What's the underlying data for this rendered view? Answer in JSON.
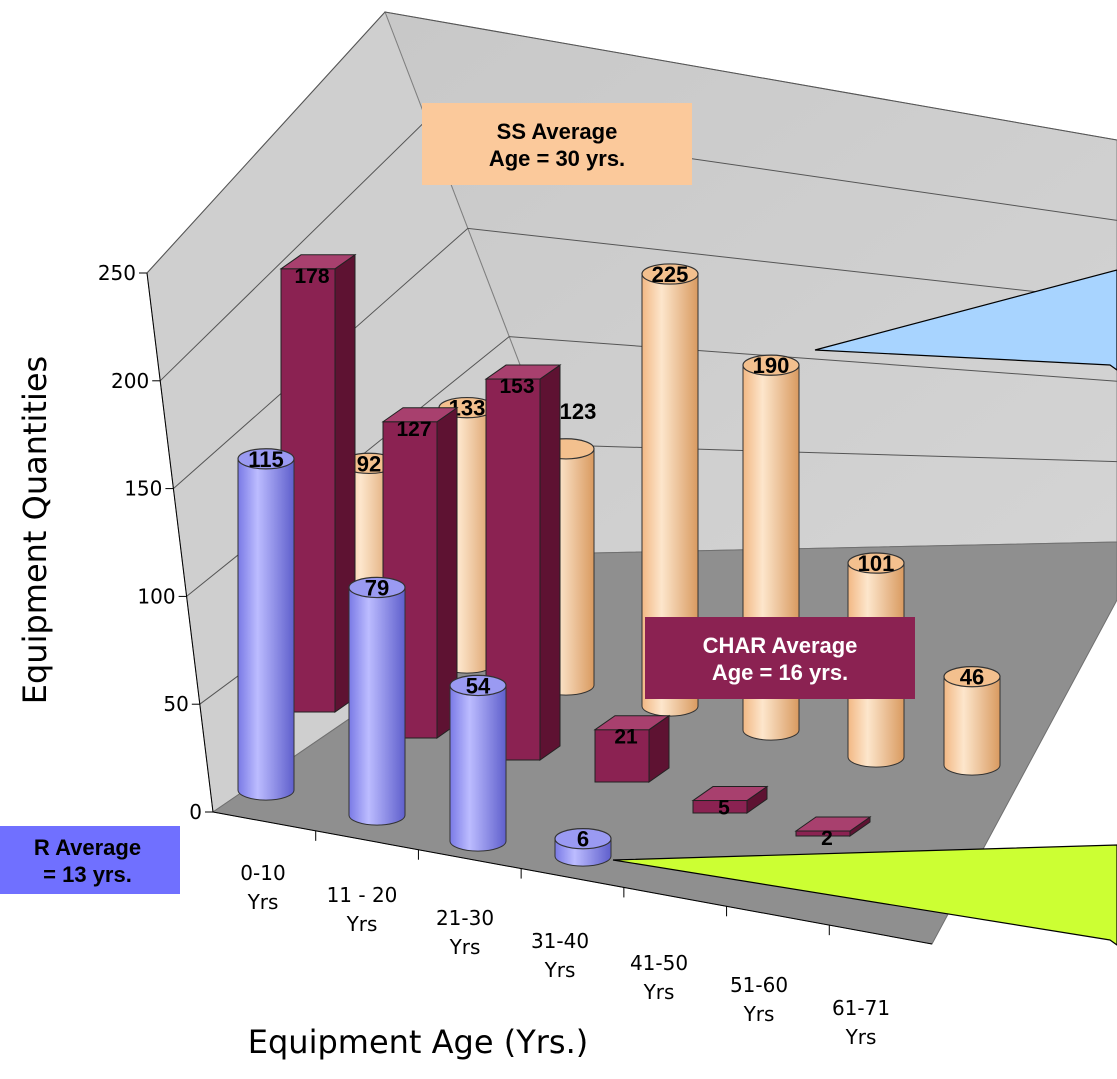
{
  "chart_data": {
    "type": "bar",
    "xlabel": "Equipment Age (Yrs.)",
    "ylabel": "Equipment Quantities",
    "ylim": [
      0,
      250
    ],
    "yticks": [
      "0",
      "50",
      "100",
      "150",
      "200",
      "250"
    ],
    "categories": [
      {
        "line1": "0-10",
        "line2": "Yrs"
      },
      {
        "line1": "11 - 20",
        "line2": "Yrs"
      },
      {
        "line1": "21-30",
        "line2": "Yrs"
      },
      {
        "line1": "31-40",
        "line2": "Yrs"
      },
      {
        "line1": "41-50",
        "line2": "Yrs"
      },
      {
        "line1": "51-60",
        "line2": "Yrs"
      },
      {
        "line1": "61-71",
        "line2": "Yrs"
      }
    ],
    "series": [
      {
        "key": "blue",
        "shape": "cylinder",
        "color": "#8c8cf0",
        "values": [
          115,
          79,
          54,
          6,
          null,
          null,
          null
        ]
      },
      {
        "key": "char",
        "shape": "box",
        "color": "#8b2252",
        "values": [
          178,
          127,
          153,
          21,
          5,
          2,
          null
        ]
      },
      {
        "key": "ss",
        "shape": "cylinder",
        "color": "#f4c08c",
        "values": [
          92,
          133,
          123,
          225,
          190,
          101,
          46
        ]
      }
    ],
    "grid": true,
    "annotations": {
      "ss_average": {
        "line1": "SS Average",
        "line2": "Age = 30 yrs."
      },
      "char_average": {
        "line1": "CHAR Average",
        "line2": "Age = 16 yrs."
      },
      "blue_average": {
        "line1": "R Average",
        "line2": "= 13 yrs."
      }
    }
  }
}
